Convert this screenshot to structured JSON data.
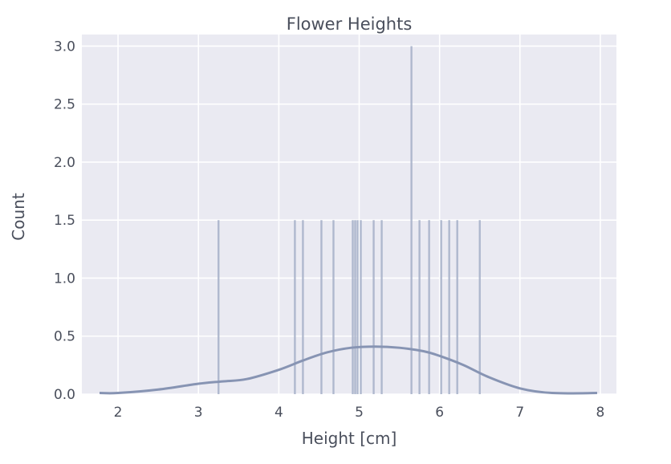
{
  "chart_data": {
    "type": "histogram",
    "title": "Flower Heights",
    "xlabel": "Height [cm]",
    "ylabel": "Count",
    "xlim": [
      1.55,
      8.2
    ],
    "ylim": [
      0,
      3.1
    ],
    "xticks": [
      2,
      3,
      4,
      5,
      6,
      7,
      8
    ],
    "xtick_labels": [
      "2",
      "3",
      "4",
      "5",
      "6",
      "7",
      "8"
    ],
    "yticks": [
      0,
      0.5,
      1,
      1.5,
      2,
      2.5,
      3
    ],
    "ytick_labels": [
      "0.0",
      "0.5",
      "1.0",
      "1.5",
      "2.0",
      "2.5",
      "3.0"
    ],
    "grid": true,
    "bars": [
      {
        "x": 3.25,
        "count": 1.5
      },
      {
        "x": 4.2,
        "count": 1.5
      },
      {
        "x": 4.3,
        "count": 1.5
      },
      {
        "x": 4.53,
        "count": 1.5
      },
      {
        "x": 4.68,
        "count": 1.5
      },
      {
        "x": 4.92,
        "count": 1.5
      },
      {
        "x": 4.95,
        "count": 1.5
      },
      {
        "x": 4.98,
        "count": 1.5
      },
      {
        "x": 5.02,
        "count": 1.5
      },
      {
        "x": 5.18,
        "count": 1.5
      },
      {
        "x": 5.28,
        "count": 1.5
      },
      {
        "x": 5.65,
        "count": 3.0
      },
      {
        "x": 5.75,
        "count": 1.5
      },
      {
        "x": 5.87,
        "count": 1.5
      },
      {
        "x": 6.02,
        "count": 1.5
      },
      {
        "x": 6.12,
        "count": 1.5
      },
      {
        "x": 6.22,
        "count": 1.5
      },
      {
        "x": 6.5,
        "count": 1.5
      }
    ],
    "kde": {
      "x": [
        1.77,
        2.0,
        2.5,
        3.0,
        3.3,
        3.6,
        4.0,
        4.3,
        4.6,
        4.9,
        5.2,
        5.5,
        5.8,
        6.0,
        6.3,
        6.6,
        7.0,
        7.4,
        7.96
      ],
      "y": [
        0.01,
        0.01,
        0.04,
        0.09,
        0.11,
        0.13,
        0.21,
        0.29,
        0.36,
        0.4,
        0.41,
        0.4,
        0.37,
        0.33,
        0.25,
        0.15,
        0.05,
        0.01,
        0.01
      ]
    },
    "colors": {
      "background": "#eaeaf2",
      "grid": "#ffffff",
      "bars": "#a9b3ca",
      "kde": "#8794b3",
      "text": "#4a4f5c"
    }
  }
}
